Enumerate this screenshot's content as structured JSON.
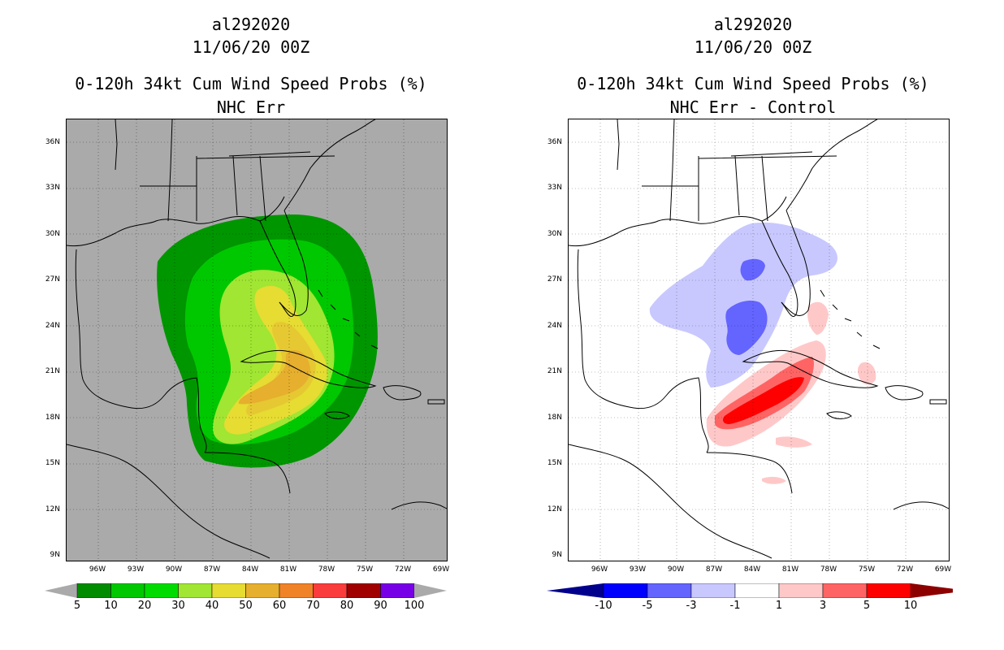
{
  "left": {
    "storm": "al292020",
    "datetime": "11/06/20 00Z",
    "product": "0-120h 34kt Cum Wind Speed Probs (%)",
    "subtitle": "NHC Err",
    "colorbar": {
      "colors": [
        "#008c00",
        "#00c800",
        "#00dc00",
        "#a0e632",
        "#e6dc32",
        "#e6af2d",
        "#f08228",
        "#fa3c3c",
        "#a00000",
        "#7800e6"
      ],
      "labels": [
        "5",
        "10",
        "20",
        "30",
        "40",
        "50",
        "60",
        "70",
        "80",
        "90",
        "100"
      ],
      "end_color": "#aaaaaa"
    }
  },
  "right": {
    "storm": "al292020",
    "datetime": "11/06/20 00Z",
    "product": "0-120h 34kt Cum Wind Speed Probs (%)",
    "subtitle": "NHC Err - Control",
    "colorbar": {
      "colors": [
        "#0000c8",
        "#0000ff",
        "#6464ff",
        "#c8c8ff",
        "#ffffff",
        "#ffc8c8",
        "#ff6464",
        "#ff0000"
      ],
      "labels": [
        "-10",
        "-5",
        "-3",
        "-1",
        "1",
        "3",
        "5",
        "10"
      ],
      "low_color": "#00008c",
      "high_color": "#8c0000"
    }
  },
  "axes": {
    "lat_labels": [
      "36N",
      "33N",
      "30N",
      "27N",
      "24N",
      "21N",
      "18N",
      "15N",
      "12N",
      "9N"
    ],
    "lon_labels": [
      "96W",
      "93W",
      "90W",
      "87W",
      "84W",
      "81W",
      "78W",
      "75W",
      "72W",
      "69W"
    ]
  },
  "chart_data": {
    "type": "heatmap",
    "region": {
      "lon_range": [
        -98.5,
        -68.5
      ],
      "lat_range": [
        8.5,
        37.5
      ]
    },
    "left_field": "cumulative 34kt wind speed probability (%) — max ~50-60% over Cuba / NW Caribbean",
    "right_field": "difference NHC Err minus Control (%) — negative over Florida/Gulf, positive (up to >5) south of Cuba"
  }
}
